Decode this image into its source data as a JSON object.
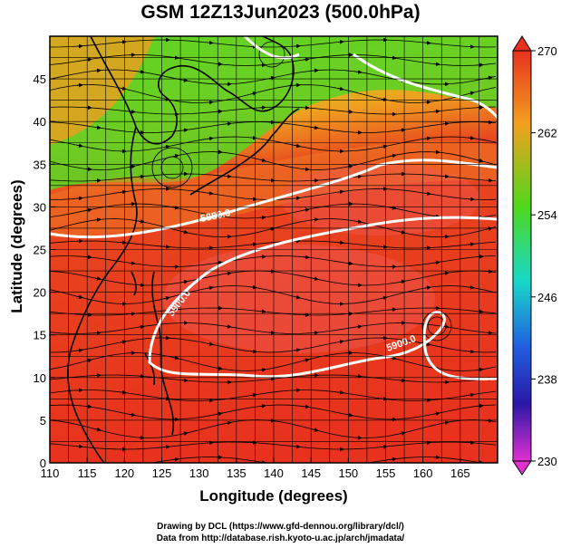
{
  "title": "GSM 12Z13Jun2023 (500.0hPa)",
  "xlabel": "Longitude (degrees)",
  "ylabel": "Latitude (degrees)",
  "x_ticks": [
    "110",
    "115",
    "120",
    "125",
    "130",
    "135",
    "140",
    "145",
    "150",
    "155",
    "160",
    "165"
  ],
  "y_ticks": [
    "0",
    "5",
    "10",
    "15",
    "20",
    "25",
    "30",
    "35",
    "40",
    "45"
  ],
  "x_range": [
    110,
    170
  ],
  "y_range": [
    0,
    50
  ],
  "colorbar": {
    "ticks": [
      "270",
      "262",
      "254",
      "246",
      "238",
      "230"
    ],
    "range": [
      230,
      270
    ]
  },
  "contours": [
    {
      "label": "5880",
      "label_text": "5880.0"
    },
    {
      "label": "5900",
      "label_text": "5900.0"
    },
    {
      "label": "5800",
      "label_text": "5800.0"
    }
  ],
  "credits": {
    "line1": "Drawing by DCL (https://www.gfd-dennou.org/library/dcl/)",
    "line2": "Data from http://database.rish.kyoto-u.ac.jp/arch/jmadata/"
  },
  "colors": {
    "warm": "#e8321e",
    "mid": "#f2a020",
    "cool": "#4fd81c",
    "contour": "#ffffff",
    "coast": "#000000"
  }
}
